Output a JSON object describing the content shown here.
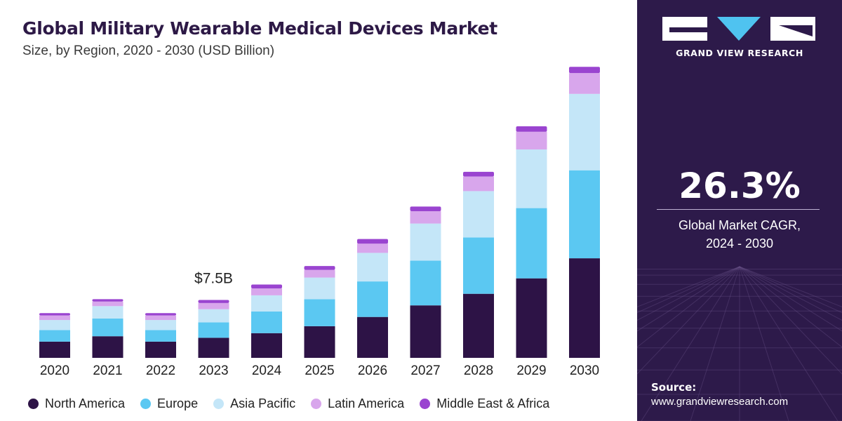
{
  "chart_data": {
    "type": "bar",
    "stacked": true,
    "title": "Global Military Wearable Medical Devices Market",
    "subtitle": "Size, by Region, 2020 - 2030 (USD Billion)",
    "categories": [
      "2020",
      "2021",
      "2022",
      "2023",
      "2024",
      "2025",
      "2026",
      "2027",
      "2028",
      "2029",
      "2030"
    ],
    "series": [
      {
        "name": "North America",
        "color": "#2d1346",
        "values": [
          2.1,
          2.8,
          2.1,
          2.6,
          3.2,
          4.1,
          5.3,
          6.8,
          8.3,
          10.3,
          12.9
        ]
      },
      {
        "name": "Europe",
        "color": "#5bc8f2",
        "values": [
          1.5,
          2.3,
          1.5,
          2.0,
          2.8,
          3.5,
          4.6,
          5.8,
          7.3,
          9.1,
          11.4
        ]
      },
      {
        "name": "Asia Pacific",
        "color": "#c4e6f8",
        "values": [
          1.3,
          1.6,
          1.3,
          1.7,
          2.1,
          2.8,
          3.7,
          4.8,
          6.0,
          7.6,
          9.9
        ]
      },
      {
        "name": "Latin America",
        "color": "#d8a6ec",
        "values": [
          0.6,
          0.6,
          0.6,
          0.8,
          0.9,
          1.0,
          1.2,
          1.6,
          1.9,
          2.3,
          2.7
        ]
      },
      {
        "name": "Middle East & Africa",
        "color": "#9a44d0",
        "values": [
          0.3,
          0.3,
          0.3,
          0.4,
          0.5,
          0.5,
          0.6,
          0.6,
          0.6,
          0.7,
          0.8
        ]
      }
    ],
    "annotations": [
      {
        "category": "2023",
        "text": "$7.5B"
      }
    ],
    "ylim": [
      0,
      38
    ],
    "grid": false,
    "legend": "bottom"
  },
  "sidebar": {
    "brand_name": "GRAND VIEW RESEARCH",
    "cagr_value": "26.3%",
    "cagr_label_line1": "Global Market CAGR,",
    "cagr_label_line2": "2024 - 2030",
    "source_label": "Source:",
    "source_url": "www.grandviewresearch.com"
  }
}
